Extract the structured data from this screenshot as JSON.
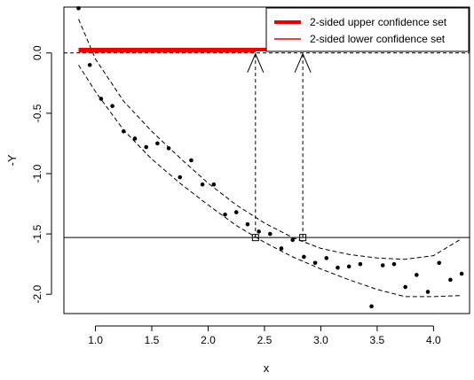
{
  "chart_data": {
    "type": "scatter",
    "xlabel": "x",
    "ylabel": "-Y",
    "xlim": [
      0.72,
      4.32
    ],
    "ylim": [
      -2.16,
      0.38
    ],
    "x_ticks": [
      1.0,
      1.5,
      2.0,
      2.5,
      3.0,
      3.5,
      4.0
    ],
    "x_tick_labels": [
      "1.0",
      "1.5",
      "2.0",
      "2.5",
      "3.0",
      "3.5",
      "4.0"
    ],
    "y_ticks": [
      0.0,
      -0.5,
      -1.0,
      -1.5,
      -2.0
    ],
    "y_tick_labels": [
      "0.0",
      "-0.5",
      "-1.0",
      "-1.5",
      "-2.0"
    ],
    "points": {
      "x": [
        0.85,
        0.95,
        1.05,
        1.15,
        1.25,
        1.35,
        1.45,
        1.55,
        1.65,
        1.75,
        1.85,
        1.95,
        2.05,
        2.15,
        2.25,
        2.35,
        2.45,
        2.55,
        2.65,
        2.75,
        2.85,
        2.95,
        3.05,
        3.15,
        3.25,
        3.35,
        3.45,
        3.55,
        3.65,
        3.75,
        3.85,
        3.95,
        4.05,
        4.15,
        4.25
      ],
      "y": [
        0.37,
        -0.1,
        -0.38,
        -0.44,
        -0.65,
        -0.71,
        -0.78,
        -0.75,
        -0.79,
        -1.03,
        -0.89,
        -1.09,
        -1.09,
        -1.34,
        -1.32,
        -1.42,
        -1.48,
        -1.5,
        -1.62,
        -1.55,
        -1.69,
        -1.74,
        -1.7,
        -1.78,
        -1.77,
        -1.75,
        -2.1,
        -1.76,
        -1.75,
        -1.94,
        -1.84,
        -1.98,
        -1.74,
        -1.88,
        -1.83
      ]
    },
    "upper_band": {
      "x": [
        0.85,
        1.0,
        1.25,
        1.5,
        1.75,
        2.0,
        2.25,
        2.5,
        2.75,
        3.0,
        3.25,
        3.5,
        3.75,
        4.0,
        4.25
      ],
      "y": [
        0.28,
        -0.05,
        -0.4,
        -0.65,
        -0.87,
        -1.08,
        -1.26,
        -1.41,
        -1.53,
        -1.62,
        -1.67,
        -1.7,
        -1.71,
        -1.68,
        -1.54
      ]
    },
    "lower_band": {
      "x": [
        0.85,
        1.0,
        1.25,
        1.5,
        1.75,
        2.0,
        2.25,
        2.5,
        2.75,
        3.0,
        3.25,
        3.5,
        3.75,
        4.0,
        4.25
      ],
      "y": [
        -0.1,
        -0.32,
        -0.64,
        -0.88,
        -1.08,
        -1.26,
        -1.43,
        -1.57,
        -1.69,
        -1.79,
        -1.88,
        -1.96,
        -2.02,
        -2.02,
        -2.01
      ]
    },
    "threshold_y": -1.53,
    "zero_y": 0.0,
    "intersections_x": [
      2.42,
      2.84
    ],
    "upper_set": {
      "x": [
        0.85,
        2.84
      ],
      "y": 0.02,
      "color": "#ee0000"
    },
    "lower_set": {
      "x": [
        0.85,
        2.42
      ],
      "y": 0.02,
      "color": "#ee0000"
    },
    "legend": {
      "position": "top-right",
      "entries": [
        {
          "label": "2-sided upper confidence set",
          "color": "#ee0000",
          "style": "thick"
        },
        {
          "label": "2-sided lower confidence set",
          "color": "#ee0000",
          "style": "thin"
        }
      ]
    },
    "grid": false
  }
}
